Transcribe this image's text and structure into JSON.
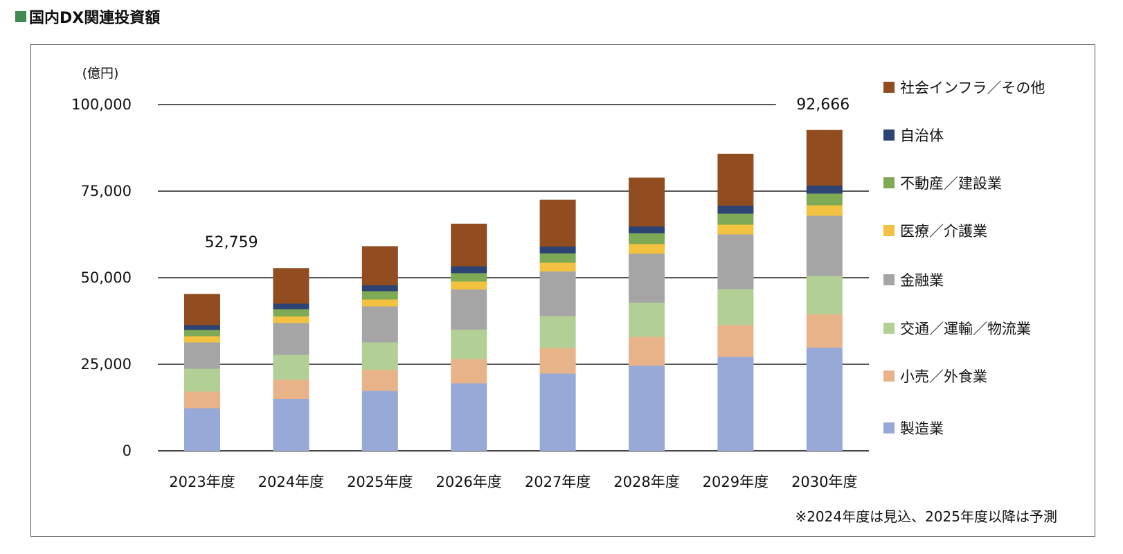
{
  "title": "国内DX関連投資額",
  "chart_data": {
    "type": "bar",
    "stacked": true,
    "title": "国内DX関連投資額",
    "ylabel": "(億円)",
    "ylim": [
      0,
      100000
    ],
    "yticks": [
      0,
      25000,
      50000,
      75000,
      100000
    ],
    "ytick_labels": [
      "0",
      "25,000",
      "50,000",
      "75,000",
      "100,000"
    ],
    "grid": true,
    "legend_position": "right",
    "categories": [
      "2023年度",
      "2024年度",
      "2025年度",
      "2026年度",
      "2027年度",
      "2028年度",
      "2029年度",
      "2030年度"
    ],
    "series": [
      {
        "name": "製造業",
        "color": "#97a9d7",
        "values": [
          12300,
          15000,
          17300,
          19500,
          22300,
          24600,
          27100,
          29800
        ]
      },
      {
        "name": "小売／外食業",
        "color": "#e9b38a",
        "values": [
          4800,
          5500,
          6100,
          7000,
          7400,
          8300,
          9200,
          9600
        ]
      },
      {
        "name": "交通／運輸／物流業",
        "color": "#b2d096",
        "values": [
          6600,
          7200,
          7900,
          8500,
          9200,
          9900,
          10400,
          11100
        ]
      },
      {
        "name": "金融業",
        "color": "#a5a5a5",
        "values": [
          7600,
          9200,
          10400,
          11600,
          12900,
          14100,
          15800,
          17400
        ]
      },
      {
        "name": "医療／介護業",
        "color": "#f3c240",
        "values": [
          1800,
          1900,
          2000,
          2300,
          2500,
          2800,
          2800,
          3000
        ]
      },
      {
        "name": "不動産／建設業",
        "color": "#7eaa55",
        "values": [
          1800,
          2100,
          2400,
          2400,
          2700,
          3100,
          3200,
          3400
        ]
      },
      {
        "name": "自治体",
        "color": "#2d4374",
        "values": [
          1400,
          1600,
          1700,
          2000,
          2000,
          2000,
          2300,
          2300
        ]
      },
      {
        "name": "社会インフラ／その他",
        "color": "#914c20",
        "values": [
          9000,
          10259,
          11300,
          12300,
          13500,
          14100,
          15000,
          16066
        ]
      }
    ],
    "annotations": [
      {
        "category": "2024年度",
        "text": "52,759"
      },
      {
        "category": "2030年度",
        "text": "92,666"
      }
    ],
    "note": "※2024年度は見込、2025年度以降は予測"
  }
}
